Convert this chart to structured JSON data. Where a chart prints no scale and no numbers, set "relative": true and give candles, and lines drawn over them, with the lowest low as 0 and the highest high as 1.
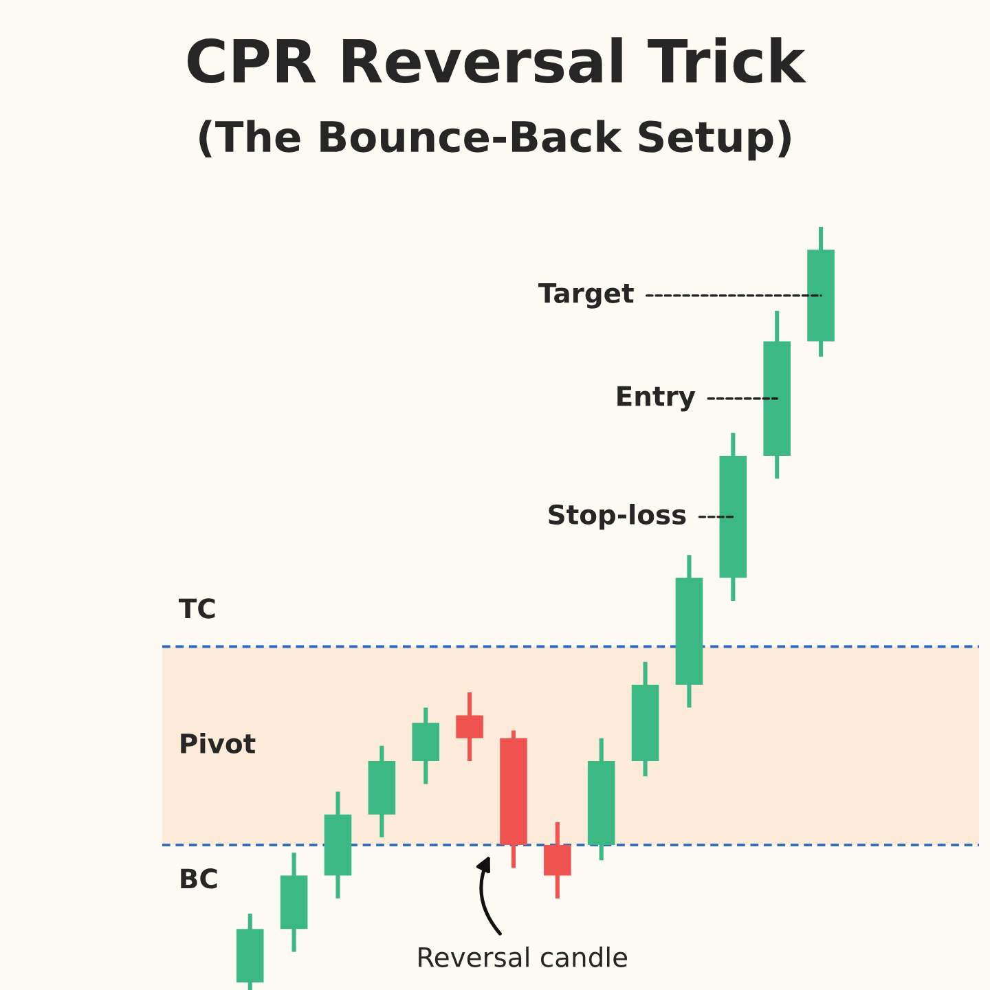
{
  "chart_data": {
    "type": "candlestick",
    "title": "CPR Reversal Trick",
    "subtitle": "(The Bounce-Back Setup)",
    "relative": true,
    "categories": [
      null,
      null,
      null,
      null,
      null,
      null,
      null,
      null,
      null,
      null,
      null,
      null,
      null,
      null
    ],
    "ohlc": [
      [
        0.01,
        0.1,
        0.0,
        0.08
      ],
      [
        0.08,
        0.18,
        0.05,
        0.15
      ],
      [
        0.15,
        0.26,
        0.12,
        0.23
      ],
      [
        0.23,
        0.32,
        0.2,
        0.3
      ],
      [
        0.3,
        0.37,
        0.27,
        0.35
      ],
      [
        0.36,
        0.39,
        0.3,
        0.33
      ],
      [
        0.33,
        0.34,
        0.16,
        0.19
      ],
      [
        0.19,
        0.22,
        0.12,
        0.15
      ],
      [
        0.19,
        0.33,
        0.17,
        0.3
      ],
      [
        0.3,
        0.43,
        0.28,
        0.4
      ],
      [
        0.4,
        0.57,
        0.37,
        0.54
      ],
      [
        0.54,
        0.73,
        0.51,
        0.7
      ],
      [
        0.7,
        0.89,
        0.67,
        0.85
      ],
      [
        0.85,
        1.0,
        0.83,
        0.97
      ]
    ],
    "colors": [
      "#3cb884",
      "#3cb884",
      "#3cb884",
      "#3cb884",
      "#3cb884",
      "#ef5350",
      "#ef5350",
      "#ef5350",
      "#3cb884",
      "#3cb884",
      "#3cb884",
      "#3cb884",
      "#3cb884",
      "#3cb884"
    ],
    "ref_lines": [
      {
        "axis": "y",
        "value": 0.45,
        "label": "TC",
        "color": "#2b6cc4",
        "line_style": "dashed"
      },
      {
        "axis": "y",
        "value": 0.19,
        "label": "BC",
        "color": "#2b6cc4",
        "line_style": "dashed"
      }
    ],
    "bands": [
      {
        "axis": "y",
        "from": 0.19,
        "to": 0.45,
        "label": "Pivot",
        "color": "#fcebd8"
      }
    ],
    "annotations": [
      "Target",
      "Entry",
      "Stop-loss",
      "Reversal candle"
    ]
  }
}
